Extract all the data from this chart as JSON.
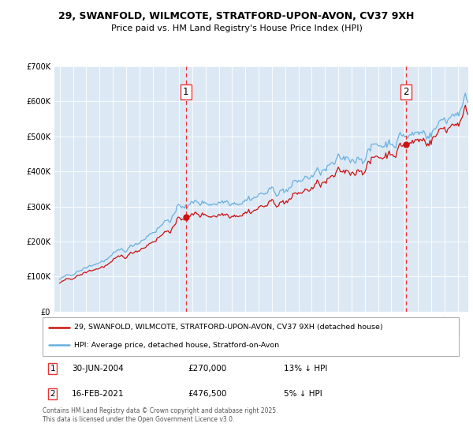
{
  "title_line1": "29, SWANFOLD, WILMCOTE, STRATFORD-UPON-AVON, CV37 9XH",
  "title_line2": "Price paid vs. HM Land Registry's House Price Index (HPI)",
  "background_color": "#dce9f5",
  "sale1_x": 2004.5,
  "sale1_price": 270000,
  "sale1_label": "1",
  "sale1_text": "30-JUN-2004",
  "sale1_amount": "£270,000",
  "sale1_pct": "13% ↓ HPI",
  "sale2_x": 2021.12,
  "sale2_price": 476500,
  "sale2_label": "2",
  "sale2_text": "16-FEB-2021",
  "sale2_amount": "£476,500",
  "sale2_pct": "5% ↓ HPI",
  "legend_line1": "29, SWANFOLD, WILMCOTE, STRATFORD-UPON-AVON, CV37 9XH (detached house)",
  "legend_line2": "HPI: Average price, detached house, Stratford-on-Avon",
  "footer": "Contains HM Land Registry data © Crown copyright and database right 2025.\nThis data is licensed under the Open Government Licence v3.0.",
  "hpi_color": "#6ab0de",
  "price_color": "#cc1111",
  "vline_color": "#ee3333",
  "ylim_max": 700000,
  "xlim_start": 1994.6,
  "xlim_end": 2025.8
}
